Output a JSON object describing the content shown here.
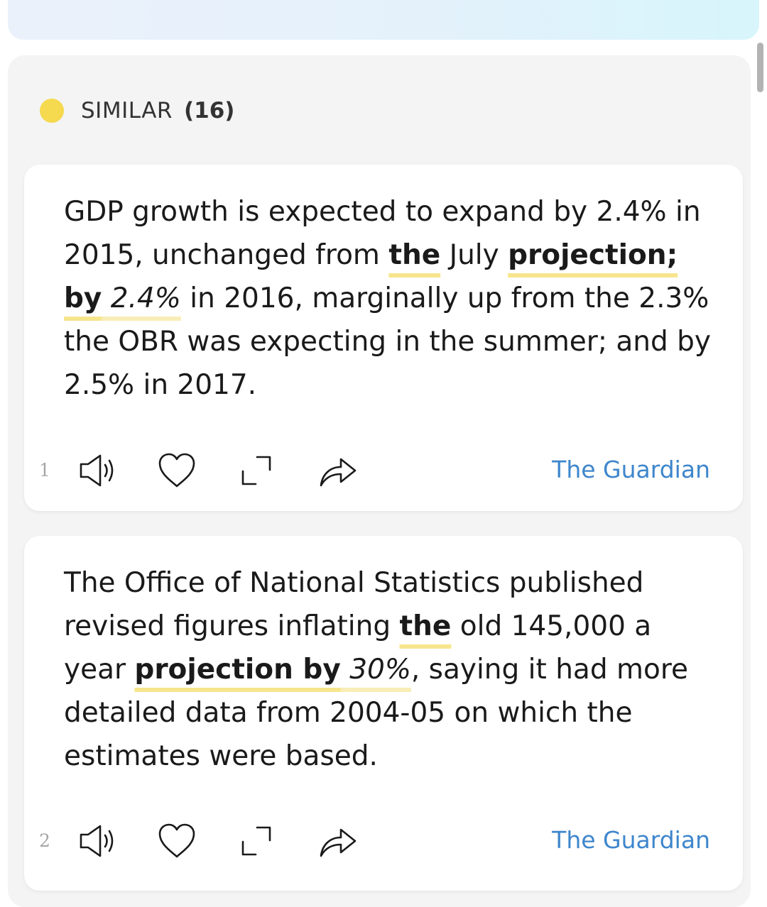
{
  "colors": {
    "accent_dot": "#f5d94e",
    "highlight": "#f6e58d",
    "link": "#3e86cc"
  },
  "similar": {
    "title": "SIMILAR",
    "count": "(16)"
  },
  "results": [
    {
      "index": "1",
      "segments": [
        "GDP growth is expected to expand by 2.4% in 2015, unchanged from ",
        "the",
        " July ",
        "projection; by",
        " ",
        "2.4%",
        " in 2016, marginally up from the 2.3% the OBR was expecting in the summer; and by 2.5% in 2017."
      ],
      "source": "The Guardian",
      "icons": [
        "speaker-icon",
        "heart-icon",
        "expand-icon",
        "share-icon"
      ]
    },
    {
      "index": "2",
      "segments": [
        "The Office of National Statistics published revised figures inflating ",
        "the",
        " old 145,000 a year ",
        "projection by",
        " ",
        "30%",
        ", saying it had more detailed data from 2004-05 on which the estimates were based."
      ],
      "source": "The Guardian",
      "icons": [
        "speaker-icon",
        "heart-icon",
        "expand-icon",
        "share-icon"
      ]
    }
  ]
}
